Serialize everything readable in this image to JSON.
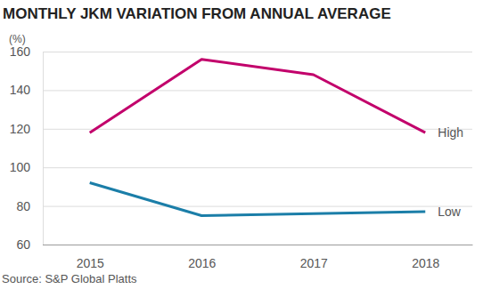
{
  "chart_data": {
    "type": "line",
    "title": "MONTHLY JKM VARIATION FROM ANNUAL AVERAGE",
    "ylabel": "(%)",
    "source": "Source: S&P Global Platts",
    "categories": [
      "2015",
      "2016",
      "2017",
      "2018"
    ],
    "series": [
      {
        "name": "High",
        "color": "#c2006b",
        "values": [
          118,
          156,
          148,
          118
        ]
      },
      {
        "name": "Low",
        "color": "#1b7ea8",
        "values": [
          92,
          75,
          76,
          77
        ]
      }
    ],
    "ylim": [
      60,
      160
    ],
    "yticks": [
      60,
      80,
      100,
      120,
      140,
      160
    ],
    "grid": true
  }
}
